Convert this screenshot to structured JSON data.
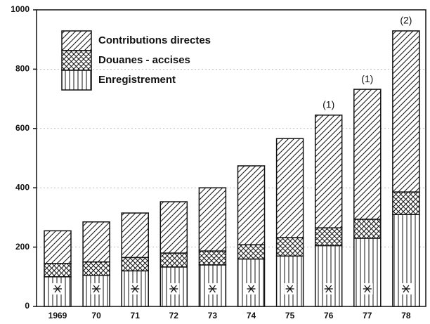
{
  "chart_data": {
    "type": "stacked_bar",
    "categories": [
      "1969",
      "70",
      "71",
      "72",
      "73",
      "74",
      "75",
      "76",
      "77",
      "78"
    ],
    "series": [
      {
        "name": "Enregistrement",
        "color": "#111111",
        "pattern": "vertical",
        "values": [
          100,
          105,
          120,
          133,
          140,
          160,
          170,
          205,
          230,
          310
        ]
      },
      {
        "name": "Douanes - accises",
        "color": "#111111",
        "pattern": "crosshatch",
        "values": [
          45,
          45,
          45,
          47,
          47,
          48,
          62,
          60,
          64,
          76
        ]
      },
      {
        "name": "Contributions directes",
        "color": "#111111",
        "pattern": "diagonal",
        "values": [
          110,
          135,
          150,
          173,
          213,
          266,
          334,
          380,
          438,
          543
        ]
      }
    ],
    "annotations": [
      null,
      null,
      null,
      null,
      null,
      null,
      null,
      "(1)",
      "(1)",
      "(2)"
    ],
    "ylim": [
      0,
      1000
    ],
    "yticks": [
      0,
      200,
      400,
      600,
      800,
      1000
    ],
    "grid": true,
    "legend": "upper left"
  }
}
